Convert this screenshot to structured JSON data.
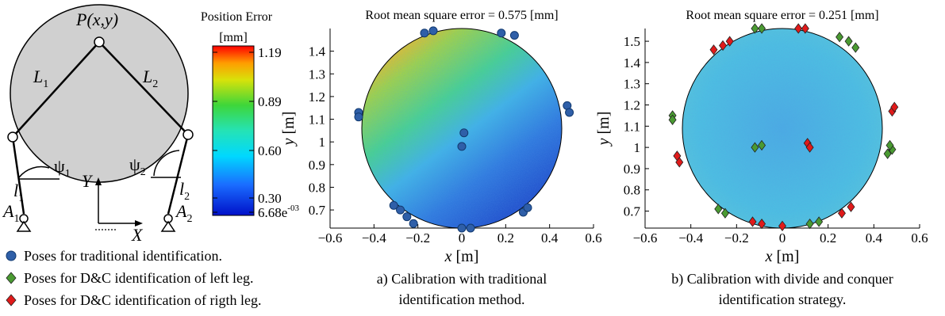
{
  "mechanism": {
    "point_label": "P(x,y)",
    "link1": "L",
    "link1_sub": "1",
    "link2": "L",
    "link2_sub": "2",
    "angle1": "ψ",
    "angle1_sub": "1",
    "angle2": "ψ",
    "angle2_sub": "2",
    "leg1": "l",
    "leg1_sub": "1",
    "leg2": "l",
    "leg2_sub": "2",
    "base1": "A",
    "base1_sub": "1",
    "base2": "A",
    "base2_sub": "2",
    "axis_y": "Y",
    "axis_x": "X"
  },
  "colorbar": {
    "title_line1": "Position Error",
    "title_line2": "[mm]",
    "ticks": [
      "1.19",
      "0.89",
      "0.60",
      "0.30",
      "6.68e"
    ],
    "min_exponent": "-03"
  },
  "legend": [
    {
      "label": "Poses for traditional identification.",
      "marker": "circle",
      "color": "#2f5fa8"
    },
    {
      "label": "Poses for D&C identification of left leg.",
      "marker": "diamond",
      "color": "#4a9a32"
    },
    {
      "label": "Poses for D&C identification of rigth leg.",
      "marker": "diamond",
      "color": "#e01a1a"
    }
  ],
  "chart_data": [
    {
      "type": "scatter",
      "title": "Root mean square error = 0.575 [mm]",
      "xlabel": "x  [m]",
      "ylabel": "y  [m]",
      "xlim": [
        -0.6,
        0.6
      ],
      "ylim": [
        0.62,
        1.5
      ],
      "xticks": [
        "−0.6",
        "−0.4",
        "−0.2",
        "0",
        "0.2",
        "0.4",
        "0.6"
      ],
      "yticks": [
        "0.7",
        "0.8",
        "0.9",
        "1",
        "1.1",
        "1.2",
        "1.3",
        "1.4"
      ],
      "caption_line1": "a) Calibration with traditional",
      "caption_line2": "identification method.",
      "heatmap": "error increasing toward upper-left, low near bottom-center",
      "series": [
        {
          "marker": "circle",
          "color": "#2f5fa8",
          "points": [
            [
              -0.13,
              1.49
            ],
            [
              -0.17,
              1.48
            ],
            [
              0.18,
              1.48
            ],
            [
              0.24,
              1.47
            ],
            [
              -0.47,
              1.13
            ],
            [
              -0.47,
              1.11
            ],
            [
              0.48,
              1.16
            ],
            [
              0.49,
              1.13
            ],
            [
              0.01,
              1.04
            ],
            [
              0.0,
              0.98
            ],
            [
              -0.31,
              0.72
            ],
            [
              -0.28,
              0.7
            ],
            [
              -0.25,
              0.67
            ],
            [
              -0.22,
              0.64
            ],
            [
              0.28,
              0.69
            ],
            [
              0.3,
              0.71
            ],
            [
              0.0,
              0.62
            ],
            [
              0.04,
              0.62
            ]
          ]
        }
      ]
    },
    {
      "type": "scatter",
      "title": "Root mean square error = 0.251 [mm]",
      "xlabel": "x  [m]",
      "ylabel": "y  [m]",
      "xlim": [
        -0.6,
        0.6
      ],
      "ylim": [
        0.62,
        1.56
      ],
      "xticks": [
        "−0.6",
        "−0.4",
        "−0.2",
        "0",
        "0.2",
        "0.4",
        "0.6"
      ],
      "yticks": [
        "0.7",
        "0.8",
        "0.9",
        "1",
        "1.1",
        "1.2",
        "1.3",
        "1.4",
        "1.5"
      ],
      "caption_line1": "b) Calibration with divide and conquer",
      "caption_line2": "identification strategy.",
      "heatmap": "uniformly low error",
      "series": [
        {
          "marker": "diamond",
          "color": "#4a9a32",
          "points": [
            [
              -0.12,
              1.56
            ],
            [
              -0.09,
              1.56
            ],
            [
              0.25,
              1.52
            ],
            [
              0.29,
              1.5
            ],
            [
              0.32,
              1.47
            ],
            [
              -0.48,
              1.15
            ],
            [
              -0.48,
              1.13
            ],
            [
              -0.12,
              1.0
            ],
            [
              -0.09,
              1.01
            ],
            [
              0.48,
              0.99
            ],
            [
              0.46,
              0.97
            ],
            [
              -0.28,
              0.71
            ],
            [
              -0.25,
              0.69
            ],
            [
              0.12,
              0.64
            ],
            [
              0.16,
              0.65
            ],
            [
              0.47,
              1.01
            ]
          ]
        },
        {
          "marker": "diamond",
          "color": "#e01a1a",
          "points": [
            [
              0.07,
              1.56
            ],
            [
              0.1,
              1.56
            ],
            [
              -0.3,
              1.46
            ],
            [
              -0.26,
              1.48
            ],
            [
              -0.23,
              1.5
            ],
            [
              0.48,
              1.17
            ],
            [
              0.49,
              1.19
            ],
            [
              -0.46,
              0.96
            ],
            [
              -0.45,
              0.93
            ],
            [
              0.11,
              1.02
            ],
            [
              0.12,
              1.0
            ],
            [
              -0.13,
              0.65
            ],
            [
              -0.09,
              0.64
            ],
            [
              0.0,
              0.63
            ],
            [
              0.26,
              0.69
            ],
            [
              0.3,
              0.72
            ]
          ]
        }
      ]
    }
  ]
}
